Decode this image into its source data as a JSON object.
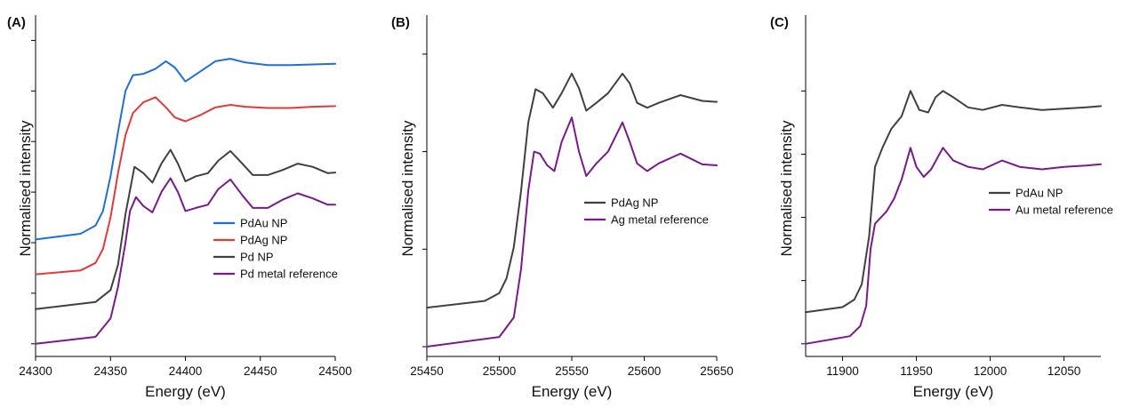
{
  "chart_data": [
    {
      "type": "line",
      "panel_label": "(A)",
      "xlabel": "Energy (eV)",
      "ylabel": "Normalised intensity",
      "xlim": [
        24300,
        24500
      ],
      "ylim": [
        -0.2,
        5.2
      ],
      "xticks": [
        24300,
        24350,
        24400,
        24450,
        24500
      ],
      "yticks": [
        0,
        0.8,
        1.6,
        2.4,
        3.2,
        4.0,
        4.8
      ],
      "legend_position": "lower-right",
      "series": [
        {
          "name": "PdAu NP",
          "color": "#1f6fd6",
          "offset": 1.65,
          "x": [
            24300,
            24330,
            24340,
            24345,
            24350,
            24355,
            24360,
            24365,
            24372,
            24380,
            24387,
            24393,
            24400,
            24410,
            24420,
            24430,
            24440,
            24455,
            24470,
            24485,
            24500
          ],
          "y": [
            0.0,
            0.09,
            0.22,
            0.45,
            1.0,
            1.7,
            2.35,
            2.6,
            2.62,
            2.7,
            2.82,
            2.72,
            2.5,
            2.66,
            2.82,
            2.86,
            2.8,
            2.76,
            2.76,
            2.77,
            2.78
          ]
        },
        {
          "name": "PdAg NP",
          "color": "#e03b3b",
          "offset": 1.1,
          "x": [
            24300,
            24330,
            24340,
            24345,
            24350,
            24355,
            24360,
            24365,
            24372,
            24380,
            24387,
            24393,
            24400,
            24410,
            24420,
            24430,
            24440,
            24455,
            24470,
            24485,
            24500
          ],
          "y": [
            0.0,
            0.06,
            0.18,
            0.4,
            0.9,
            1.6,
            2.2,
            2.55,
            2.72,
            2.8,
            2.64,
            2.48,
            2.42,
            2.52,
            2.64,
            2.68,
            2.65,
            2.63,
            2.63,
            2.65,
            2.66
          ]
        },
        {
          "name": "Pd NP",
          "color": "#404040",
          "offset": 0.55,
          "x": [
            24300,
            24340,
            24350,
            24355,
            24360,
            24366,
            24372,
            24378,
            24384,
            24390,
            24395,
            24400,
            24407,
            24415,
            24422,
            24430,
            24438,
            24445,
            24455,
            24465,
            24475,
            24485,
            24495,
            24500
          ],
          "y": [
            0.0,
            0.11,
            0.3,
            0.7,
            1.5,
            2.25,
            2.15,
            2.0,
            2.3,
            2.52,
            2.3,
            2.02,
            2.1,
            2.15,
            2.35,
            2.5,
            2.3,
            2.12,
            2.12,
            2.2,
            2.3,
            2.25,
            2.15,
            2.16
          ]
        },
        {
          "name": "Pd metal reference",
          "color": "#7a1a8a",
          "offset": 0.0,
          "x": [
            24300,
            24340,
            24350,
            24355,
            24360,
            24363,
            24367,
            24372,
            24378,
            24384,
            24390,
            24395,
            24400,
            24407,
            24415,
            24422,
            24430,
            24438,
            24445,
            24455,
            24465,
            24475,
            24485,
            24495,
            24500
          ],
          "y": [
            0.0,
            0.11,
            0.4,
            0.9,
            1.6,
            2.1,
            2.32,
            2.18,
            2.08,
            2.4,
            2.62,
            2.4,
            2.1,
            2.15,
            2.2,
            2.45,
            2.6,
            2.35,
            2.15,
            2.15,
            2.28,
            2.38,
            2.3,
            2.2,
            2.2
          ]
        }
      ]
    },
    {
      "type": "line",
      "panel_label": "(B)",
      "xlabel": "Energy (eV)",
      "ylabel": "Normalised intensity",
      "xlim": [
        25450,
        25650
      ],
      "ylim": [
        -0.1,
        3.4
      ],
      "xticks": [
        25450,
        25500,
        25550,
        25600,
        25650
      ],
      "yticks": [
        0,
        1.0,
        2.0,
        3.0
      ],
      "legend_position": "center-right",
      "series": [
        {
          "name": "PdAg NP",
          "color": "#404040",
          "offset": 0.4,
          "x": [
            25450,
            25490,
            25500,
            25505,
            25510,
            25515,
            25520,
            25525,
            25530,
            25537,
            25543,
            25550,
            25555,
            25560,
            25567,
            25575,
            25585,
            25590,
            25595,
            25602,
            25610,
            25625,
            25640,
            25650
          ],
          "y": [
            0.0,
            0.07,
            0.15,
            0.3,
            0.62,
            1.2,
            1.9,
            2.24,
            2.2,
            2.05,
            2.2,
            2.4,
            2.25,
            2.02,
            2.1,
            2.2,
            2.4,
            2.3,
            2.1,
            2.05,
            2.1,
            2.18,
            2.12,
            2.11
          ]
        },
        {
          "name": "Ag metal reference",
          "color": "#7a1a8a",
          "offset": 0.0,
          "x": [
            25450,
            25500,
            25510,
            25515,
            25520,
            25524,
            25528,
            25533,
            25538,
            25543,
            25550,
            25555,
            25560,
            25567,
            25575,
            25585,
            25590,
            25595,
            25602,
            25610,
            25625,
            25640,
            25650
          ],
          "y": [
            0.0,
            0.1,
            0.3,
            0.8,
            1.6,
            2.0,
            1.98,
            1.86,
            1.8,
            2.1,
            2.35,
            2.0,
            1.75,
            1.88,
            2.0,
            2.3,
            2.1,
            1.88,
            1.8,
            1.88,
            1.98,
            1.87,
            1.86
          ]
        }
      ]
    },
    {
      "type": "line",
      "panel_label": "(C)",
      "xlabel": "Energy (eV)",
      "ylabel": "Normalised intensity",
      "xlim": [
        11875,
        12075
      ],
      "ylim": [
        -0.1,
        2.6
      ],
      "xticks": [
        11900,
        11950,
        12000,
        12050
      ],
      "yticks": [
        0,
        0.5,
        1.0,
        1.5,
        2.0
      ],
      "legend_position": "center-right",
      "series": [
        {
          "name": "PdAu NP",
          "color": "#404040",
          "offset": 0.25,
          "x": [
            11875,
            11900,
            11908,
            11913,
            11918,
            11922,
            11927,
            11933,
            11940,
            11946,
            11952,
            11958,
            11963,
            11968,
            11975,
            11985,
            11995,
            12008,
            12020,
            12035,
            12050,
            12065,
            12075
          ],
          "y": [
            0.0,
            0.04,
            0.1,
            0.22,
            0.6,
            1.15,
            1.3,
            1.45,
            1.55,
            1.75,
            1.6,
            1.58,
            1.7,
            1.75,
            1.7,
            1.62,
            1.6,
            1.64,
            1.62,
            1.6,
            1.61,
            1.62,
            1.63
          ]
        },
        {
          "name": "Au metal reference",
          "color": "#7a1a8a",
          "offset": 0.0,
          "x": [
            11875,
            11905,
            11912,
            11916,
            11919,
            11922,
            11926,
            11930,
            11935,
            11940,
            11946,
            11950,
            11955,
            11960,
            11968,
            11975,
            11985,
            11995,
            12008,
            12020,
            12035,
            12050,
            12065,
            12075
          ],
          "y": [
            0.0,
            0.06,
            0.14,
            0.3,
            0.75,
            0.95,
            1.0,
            1.05,
            1.15,
            1.3,
            1.55,
            1.4,
            1.32,
            1.38,
            1.55,
            1.45,
            1.4,
            1.38,
            1.45,
            1.4,
            1.38,
            1.4,
            1.41,
            1.42
          ]
        }
      ]
    }
  ]
}
